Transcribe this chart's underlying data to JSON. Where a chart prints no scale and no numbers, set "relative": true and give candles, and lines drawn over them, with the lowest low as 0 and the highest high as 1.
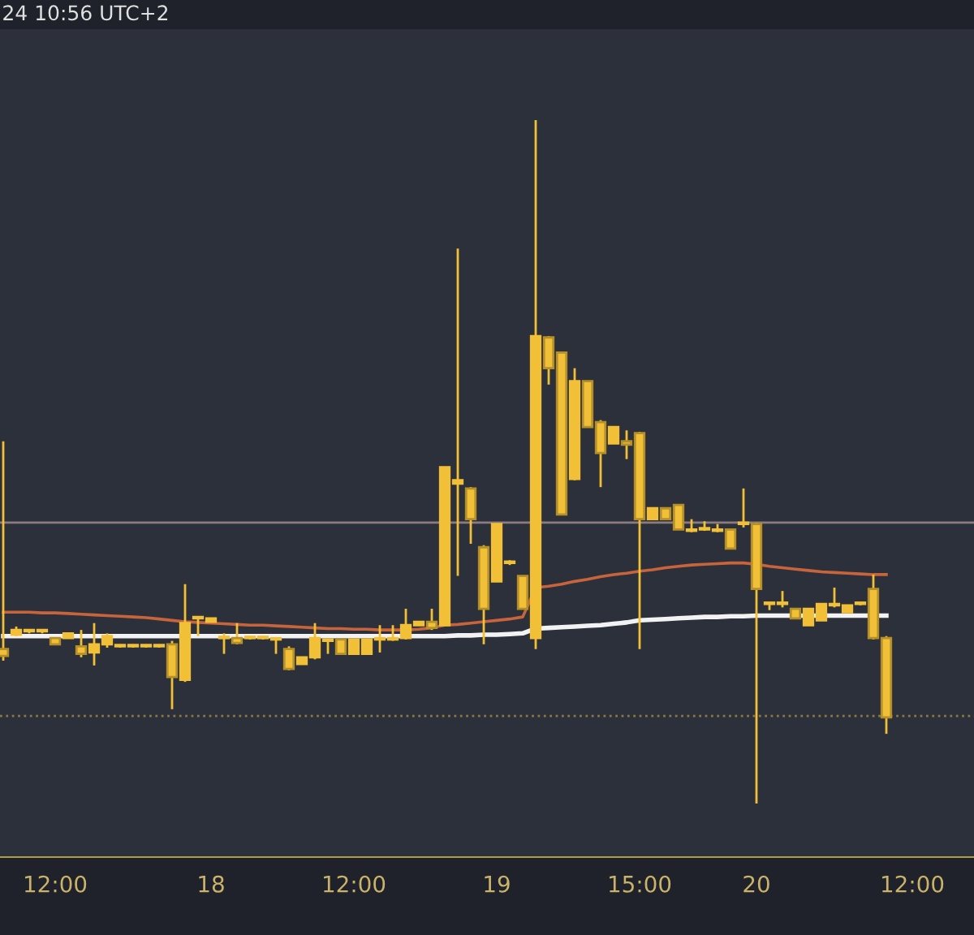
{
  "chart_data": {
    "type": "candlestick",
    "title": "24 10:56 UTC+2",
    "relative": true,
    "tick_labels": "x",
    "grid": false,
    "legend": false,
    "color": "#f2c037",
    "categories": [
      null,
      null,
      null,
      null,
      "12:00",
      null,
      null,
      null,
      null,
      null,
      null,
      null,
      null,
      null,
      null,
      null,
      "18",
      null,
      null,
      null,
      null,
      null,
      null,
      null,
      null,
      null,
      null,
      "12:00",
      null,
      null,
      null,
      null,
      null,
      null,
      null,
      null,
      null,
      null,
      "19",
      null,
      null,
      null,
      null,
      null,
      null,
      null,
      null,
      null,
      null,
      "15:00",
      null,
      null,
      null,
      null,
      null,
      null,
      null,
      null,
      "20",
      null,
      null,
      null,
      null,
      null,
      null,
      null,
      null,
      null,
      null,
      null,
      "12:00",
      null,
      null,
      null,
      null
    ],
    "ohlc": [
      [
        0.226,
        0.53,
        0.209,
        0.216
      ],
      [
        0.247,
        0.259,
        0.245,
        0.254
      ],
      [
        0.252,
        0.254,
        0.249,
        0.252
      ],
      [
        0.252,
        0.254,
        0.249,
        0.252
      ],
      [
        0.242,
        0.242,
        0.233,
        0.233
      ],
      [
        0.242,
        0.249,
        0.242,
        0.249
      ],
      [
        0.23,
        0.254,
        0.214,
        0.219
      ],
      [
        0.221,
        0.264,
        0.202,
        0.233
      ],
      [
        0.233,
        0.249,
        0.228,
        0.245
      ],
      [
        0.23,
        0.233,
        0.228,
        0.23
      ],
      [
        0.23,
        0.233,
        0.228,
        0.23
      ],
      [
        0.23,
        0.233,
        0.228,
        0.23
      ],
      [
        0.23,
        0.233,
        0.228,
        0.23
      ],
      [
        0.233,
        0.238,
        0.138,
        0.185
      ],
      [
        0.181,
        0.321,
        0.178,
        0.264
      ],
      [
        0.271,
        0.273,
        0.245,
        0.271
      ],
      [
        0.266,
        0.271,
        0.266,
        0.271
      ],
      [
        0.242,
        0.249,
        0.219,
        0.242
      ],
      [
        0.242,
        0.264,
        0.233,
        0.235
      ],
      [
        0.242,
        0.245,
        0.24,
        0.242
      ],
      [
        0.242,
        0.245,
        0.24,
        0.242
      ],
      [
        0.24,
        0.242,
        0.219,
        0.24
      ],
      [
        0.226,
        0.23,
        0.195,
        0.197
      ],
      [
        0.204,
        0.214,
        0.204,
        0.214
      ],
      [
        0.214,
        0.264,
        0.211,
        0.242
      ],
      [
        0.238,
        0.238,
        0.219,
        0.238
      ],
      [
        0.24,
        0.24,
        0.219,
        0.219
      ],
      [
        0.219,
        0.24,
        0.219,
        0.24
      ],
      [
        0.219,
        0.24,
        0.219,
        0.24
      ],
      [
        0.24,
        0.261,
        0.221,
        0.24
      ],
      [
        0.24,
        0.261,
        0.238,
        0.24
      ],
      [
        0.242,
        0.285,
        0.24,
        0.261
      ],
      [
        0.261,
        0.266,
        0.261,
        0.266
      ],
      [
        0.266,
        0.285,
        0.254,
        0.257
      ],
      [
        0.261,
        0.492,
        0.261,
        0.492
      ],
      [
        0.468,
        0.812,
        0.333,
        0.473
      ],
      [
        0.461,
        0.463,
        0.38,
        0.416
      ],
      [
        0.375,
        0.378,
        0.233,
        0.285
      ],
      [
        0.325,
        0.409,
        0.325,
        0.409
      ],
      [
        0.352,
        0.356,
        0.349,
        0.352
      ],
      [
        0.333,
        0.333,
        0.285,
        0.285
      ],
      [
        0.242,
        1.0,
        0.226,
        0.684
      ],
      [
        0.682,
        0.684,
        0.613,
        0.637
      ],
      [
        0.66,
        0.66,
        0.423,
        0.423
      ],
      [
        0.475,
        0.637,
        0.473,
        0.618
      ],
      [
        0.618,
        0.618,
        0.551,
        0.551
      ],
      [
        0.558,
        0.561,
        0.463,
        0.513
      ],
      [
        0.527,
        0.551,
        0.527,
        0.551
      ],
      [
        0.53,
        0.546,
        0.504,
        0.525
      ],
      [
        0.542,
        0.544,
        0.226,
        0.416
      ],
      [
        0.416,
        0.432,
        0.416,
        0.432
      ],
      [
        0.432,
        0.432,
        0.416,
        0.416
      ],
      [
        0.437,
        0.437,
        0.401,
        0.401
      ],
      [
        0.399,
        0.416,
        0.397,
        0.399
      ],
      [
        0.401,
        0.413,
        0.399,
        0.401
      ],
      [
        0.399,
        0.409,
        0.397,
        0.399
      ],
      [
        0.401,
        0.401,
        0.373,
        0.373
      ],
      [
        0.409,
        0.461,
        0.404,
        0.409
      ],
      [
        0.409,
        0.411,
        0.0,
        0.314
      ],
      [
        0.292,
        0.295,
        0.283,
        0.292
      ],
      [
        0.292,
        0.311,
        0.287,
        0.292
      ],
      [
        0.285,
        0.285,
        0.271,
        0.271
      ],
      [
        0.261,
        0.285,
        0.261,
        0.285
      ],
      [
        0.268,
        0.292,
        0.268,
        0.292
      ],
      [
        0.29,
        0.316,
        0.287,
        0.29
      ],
      [
        0.28,
        0.29,
        0.28,
        0.29
      ],
      [
        0.292,
        0.295,
        0.29,
        0.292
      ],
      [
        0.314,
        0.335,
        0.24,
        0.242
      ],
      [
        0.242,
        0.245,
        0.102,
        0.126
      ],
      null,
      null,
      null,
      null,
      null,
      null
    ],
    "series": [
      {
        "type": "line",
        "color": "#c8643c",
        "values": [
          0.28,
          0.28,
          0.28,
          0.279,
          0.279,
          0.278,
          0.277,
          0.276,
          0.275,
          0.274,
          0.273,
          0.272,
          0.27,
          0.268,
          0.266,
          0.265,
          0.264,
          0.263,
          0.262,
          0.261,
          0.261,
          0.26,
          0.259,
          0.258,
          0.257,
          0.256,
          0.256,
          0.255,
          0.255,
          0.254,
          0.254,
          0.254,
          0.255,
          0.257,
          0.261,
          0.262,
          0.264,
          0.266,
          0.268,
          0.27,
          0.273,
          0.316,
          0.318,
          0.321,
          0.325,
          0.328,
          0.332,
          0.335,
          0.337,
          0.34,
          0.342,
          0.345,
          0.347,
          0.349,
          0.35,
          0.351,
          0.352,
          0.352,
          0.35,
          0.347,
          0.345,
          0.343,
          0.341,
          0.339,
          0.338,
          0.337,
          0.336,
          0.335,
          0.335,
          null,
          null,
          null,
          null,
          null,
          null
        ]
      },
      {
        "type": "line",
        "color": "#f2f2f2",
        "values": [
          0.245,
          0.245,
          0.245,
          0.245,
          0.245,
          0.245,
          0.245,
          0.245,
          0.245,
          0.245,
          0.245,
          0.245,
          0.245,
          0.245,
          0.245,
          0.245,
          0.245,
          0.245,
          0.245,
          0.245,
          0.245,
          0.245,
          0.245,
          0.245,
          0.245,
          0.245,
          0.245,
          0.245,
          0.245,
          0.245,
          0.245,
          0.245,
          0.245,
          0.245,
          0.245,
          0.246,
          0.246,
          0.247,
          0.247,
          0.248,
          0.249,
          0.256,
          0.257,
          0.258,
          0.259,
          0.26,
          0.261,
          0.263,
          0.265,
          0.268,
          0.269,
          0.27,
          0.271,
          0.272,
          0.273,
          0.273,
          0.274,
          0.274,
          0.275,
          0.275,
          0.275,
          0.275,
          0.275,
          0.275,
          0.275,
          0.275,
          0.275,
          0.275,
          0.275,
          null,
          null,
          null,
          null,
          null,
          null
        ]
      }
    ],
    "ref_lines": [
      {
        "axis": "y",
        "value": 0.411,
        "color": "#8c7c80",
        "line_style": "solid"
      },
      {
        "axis": "y",
        "value": 0.128,
        "color": "#8a7a40",
        "line_style": "dotted"
      }
    ]
  }
}
